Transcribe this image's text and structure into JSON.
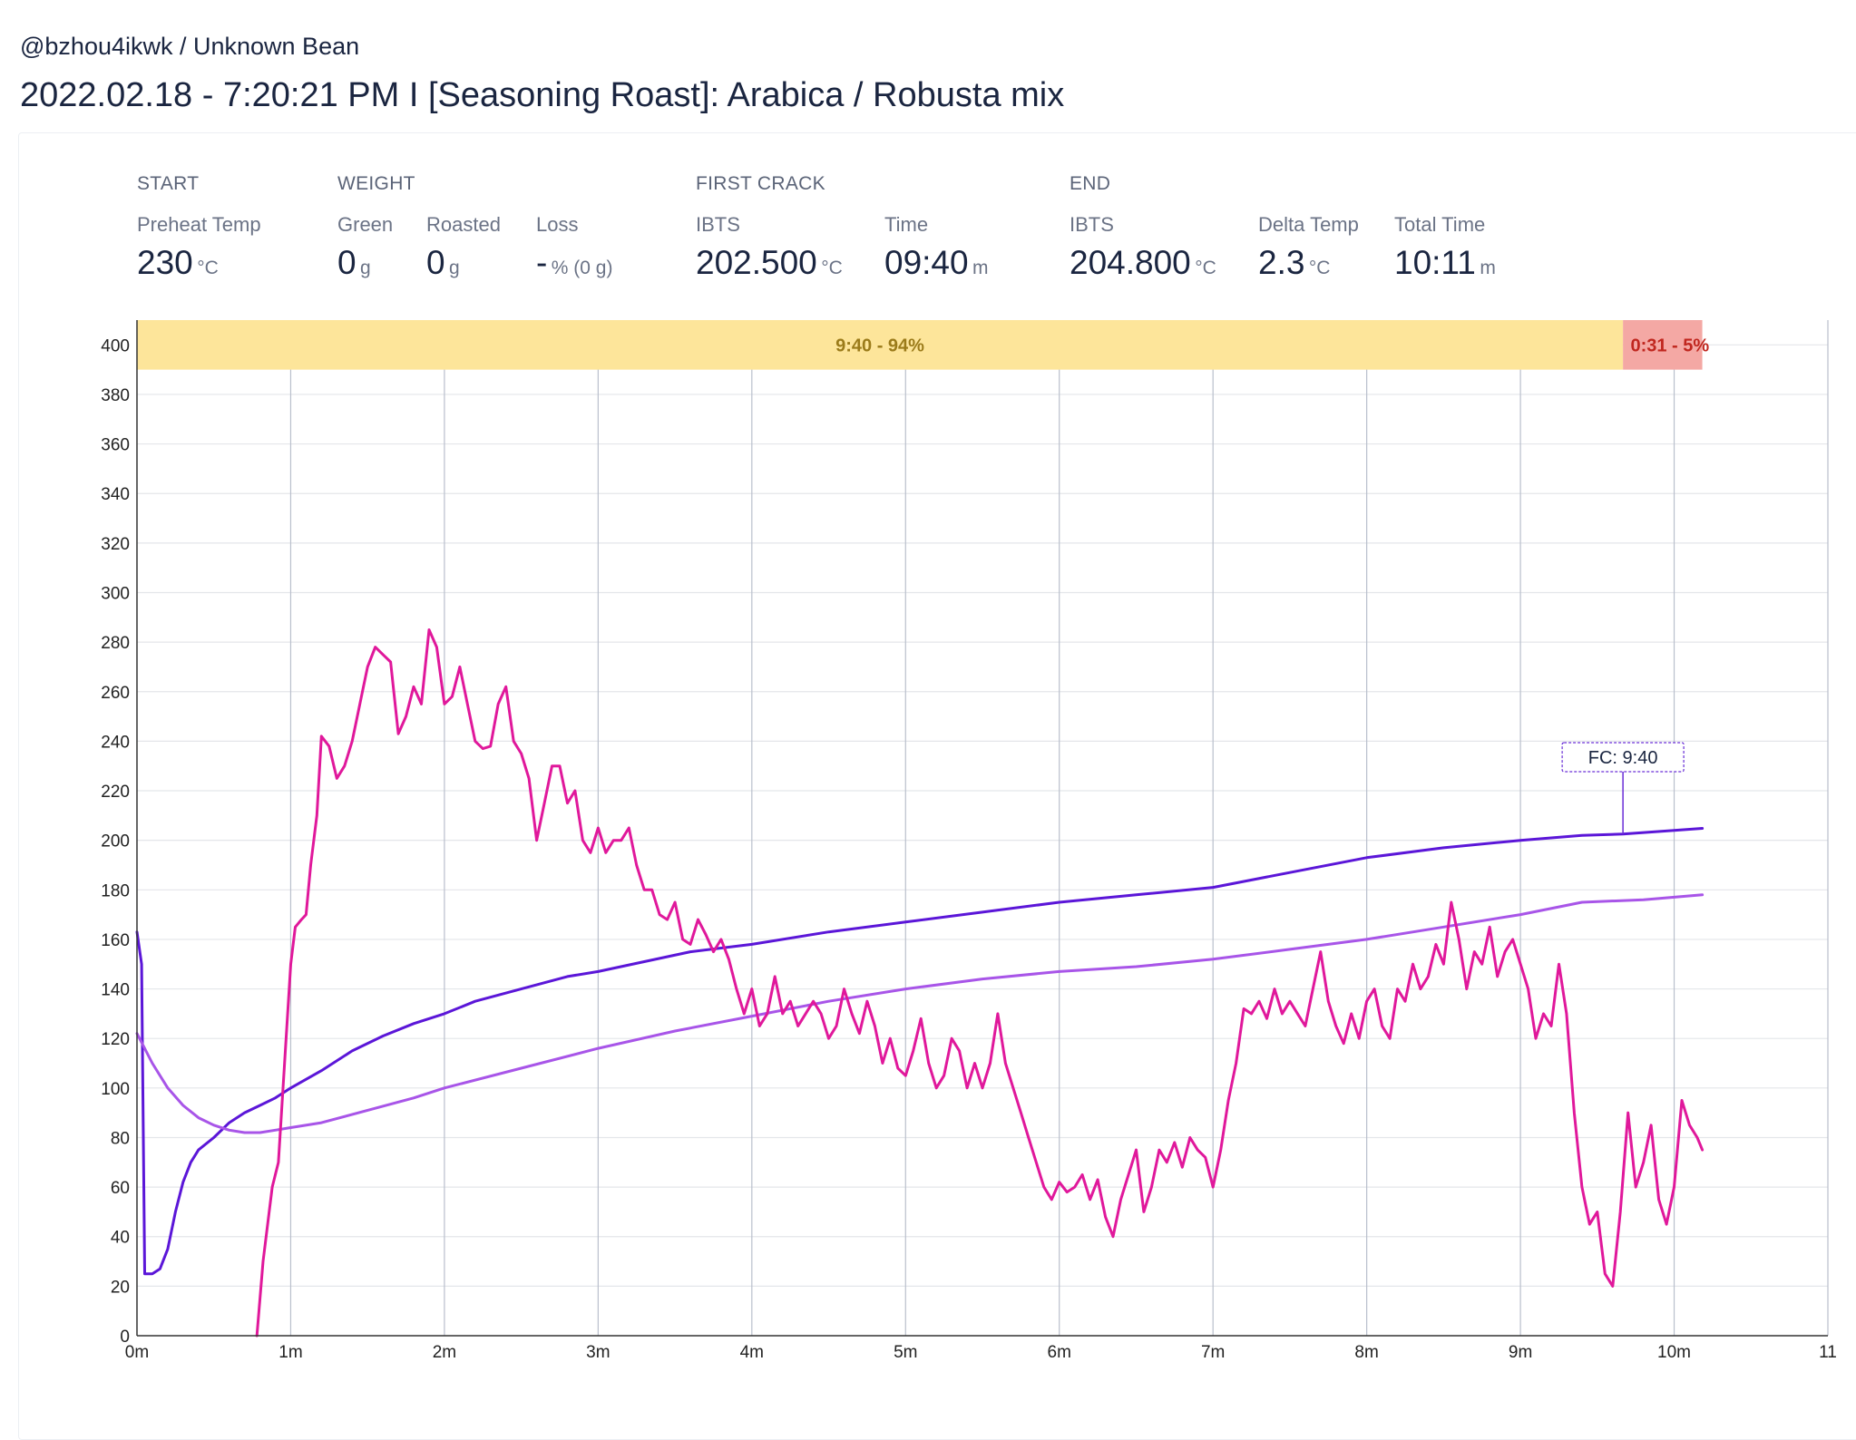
{
  "header": {
    "breadcrumb": "@bzhou4ikwk / Unknown Bean",
    "title": "2022.02.18 - 7:20:21 PM I [Seasoning Roast]: Arabica / Robusta mix"
  },
  "stats": {
    "start": {
      "heading": "START",
      "preheat_label": "Preheat Temp",
      "preheat_value": "230",
      "preheat_unit": "°C"
    },
    "weight": {
      "heading": "WEIGHT",
      "green_label": "Green",
      "green_value": "0",
      "green_unit": "g",
      "roasted_label": "Roasted",
      "roasted_value": "0",
      "roasted_unit": "g",
      "loss_label": "Loss",
      "loss_value": "-",
      "loss_unit": "% (0 g)"
    },
    "first_crack": {
      "heading": "FIRST CRACK",
      "ibts_label": "IBTS",
      "ibts_value": "202.500",
      "ibts_unit": "°C",
      "time_label": "Time",
      "time_value": "09:40",
      "time_unit": "m"
    },
    "end": {
      "heading": "END",
      "ibts_label": "IBTS",
      "ibts_value": "204.800",
      "ibts_unit": "°C",
      "delta_label": "Delta Temp",
      "delta_value": "2.3",
      "delta_unit": "°C",
      "total_label": "Total Time",
      "total_value": "10:11",
      "total_unit": "m"
    }
  },
  "chart_data": {
    "type": "line",
    "xlim": [
      0,
      11
    ],
    "ylim": [
      0,
      410
    ],
    "x_ticks": [
      0,
      1,
      2,
      3,
      4,
      5,
      6,
      7,
      8,
      9,
      10,
      11
    ],
    "x_tick_labels": [
      "0m",
      "1m",
      "2m",
      "3m",
      "4m",
      "5m",
      "6m",
      "7m",
      "8m",
      "9m",
      "10m",
      "11"
    ],
    "y_ticks": [
      0,
      20,
      40,
      60,
      80,
      100,
      120,
      140,
      160,
      180,
      200,
      220,
      240,
      260,
      280,
      300,
      320,
      340,
      360,
      380,
      400
    ],
    "grid": true,
    "phases": [
      {
        "label": "9:40 - 94%",
        "start": 0,
        "end": 9.667,
        "color": "#fde59a",
        "text_color": "#9b7b1a"
      },
      {
        "label": "0:31 - 5%",
        "start": 9.667,
        "end": 10.183,
        "color": "#f4a8a4",
        "text_color": "#c0271f"
      }
    ],
    "annotation": {
      "label": "FC: 9:40",
      "x": 9.667,
      "y": 202.5
    },
    "series": [
      {
        "color": "#5b16d8",
        "points": [
          [
            0,
            163
          ],
          [
            0.03,
            150
          ],
          [
            0.05,
            25
          ],
          [
            0.1,
            25
          ],
          [
            0.15,
            27
          ],
          [
            0.2,
            35
          ],
          [
            0.25,
            50
          ],
          [
            0.3,
            62
          ],
          [
            0.35,
            70
          ],
          [
            0.4,
            75
          ],
          [
            0.5,
            80
          ],
          [
            0.6,
            86
          ],
          [
            0.7,
            90
          ],
          [
            0.8,
            93
          ],
          [
            0.9,
            96
          ],
          [
            1.0,
            100
          ],
          [
            1.2,
            107
          ],
          [
            1.4,
            115
          ],
          [
            1.6,
            121
          ],
          [
            1.8,
            126
          ],
          [
            2.0,
            130
          ],
          [
            2.2,
            135
          ],
          [
            2.5,
            140
          ],
          [
            2.8,
            145
          ],
          [
            3.0,
            147
          ],
          [
            3.3,
            151
          ],
          [
            3.6,
            155
          ],
          [
            4.0,
            158
          ],
          [
            4.5,
            163
          ],
          [
            5.0,
            167
          ],
          [
            5.5,
            171
          ],
          [
            6.0,
            175
          ],
          [
            6.5,
            178
          ],
          [
            7.0,
            181
          ],
          [
            7.5,
            187
          ],
          [
            8.0,
            193
          ],
          [
            8.5,
            197
          ],
          [
            9.0,
            200
          ],
          [
            9.4,
            202
          ],
          [
            9.667,
            202.5
          ],
          [
            10.0,
            204
          ],
          [
            10.183,
            204.8
          ]
        ]
      },
      {
        "color": "#a855e8",
        "points": [
          [
            0,
            122
          ],
          [
            0.1,
            110
          ],
          [
            0.2,
            100
          ],
          [
            0.3,
            93
          ],
          [
            0.4,
            88
          ],
          [
            0.5,
            85
          ],
          [
            0.6,
            83
          ],
          [
            0.7,
            82
          ],
          [
            0.8,
            82
          ],
          [
            0.9,
            83
          ],
          [
            1.0,
            84
          ],
          [
            1.2,
            86
          ],
          [
            1.5,
            91
          ],
          [
            1.8,
            96
          ],
          [
            2.0,
            100
          ],
          [
            2.5,
            108
          ],
          [
            3.0,
            116
          ],
          [
            3.5,
            123
          ],
          [
            4.0,
            129
          ],
          [
            4.5,
            135
          ],
          [
            5.0,
            140
          ],
          [
            5.5,
            144
          ],
          [
            6.0,
            147
          ],
          [
            6.5,
            149
          ],
          [
            7.0,
            152
          ],
          [
            7.5,
            156
          ],
          [
            8.0,
            160
          ],
          [
            8.5,
            165
          ],
          [
            9.0,
            170
          ],
          [
            9.4,
            175
          ],
          [
            9.8,
            176
          ],
          [
            10.183,
            178
          ]
        ]
      },
      {
        "color": "#e0189b",
        "points": [
          [
            0.78,
            0
          ],
          [
            0.82,
            30
          ],
          [
            0.88,
            60
          ],
          [
            0.92,
            70
          ],
          [
            0.96,
            110
          ],
          [
            1.0,
            150
          ],
          [
            1.03,
            165
          ],
          [
            1.07,
            168
          ],
          [
            1.1,
            170
          ],
          [
            1.13,
            190
          ],
          [
            1.17,
            210
          ],
          [
            1.2,
            242
          ],
          [
            1.25,
            238
          ],
          [
            1.3,
            225
          ],
          [
            1.35,
            230
          ],
          [
            1.4,
            240
          ],
          [
            1.45,
            255
          ],
          [
            1.5,
            270
          ],
          [
            1.55,
            278
          ],
          [
            1.6,
            275
          ],
          [
            1.65,
            272
          ],
          [
            1.7,
            243
          ],
          [
            1.75,
            250
          ],
          [
            1.8,
            262
          ],
          [
            1.85,
            255
          ],
          [
            1.9,
            285
          ],
          [
            1.95,
            278
          ],
          [
            2.0,
            255
          ],
          [
            2.05,
            258
          ],
          [
            2.1,
            270
          ],
          [
            2.15,
            255
          ],
          [
            2.2,
            240
          ],
          [
            2.25,
            237
          ],
          [
            2.3,
            238
          ],
          [
            2.35,
            255
          ],
          [
            2.4,
            262
          ],
          [
            2.45,
            240
          ],
          [
            2.5,
            235
          ],
          [
            2.55,
            225
          ],
          [
            2.6,
            200
          ],
          [
            2.65,
            215
          ],
          [
            2.7,
            230
          ],
          [
            2.75,
            230
          ],
          [
            2.8,
            215
          ],
          [
            2.85,
            220
          ],
          [
            2.9,
            200
          ],
          [
            2.95,
            195
          ],
          [
            3.0,
            205
          ],
          [
            3.05,
            195
          ],
          [
            3.1,
            200
          ],
          [
            3.15,
            200
          ],
          [
            3.2,
            205
          ],
          [
            3.25,
            190
          ],
          [
            3.3,
            180
          ],
          [
            3.35,
            180
          ],
          [
            3.4,
            170
          ],
          [
            3.45,
            168
          ],
          [
            3.5,
            175
          ],
          [
            3.55,
            160
          ],
          [
            3.6,
            158
          ],
          [
            3.65,
            168
          ],
          [
            3.7,
            162
          ],
          [
            3.75,
            155
          ],
          [
            3.8,
            160
          ],
          [
            3.85,
            152
          ],
          [
            3.9,
            140
          ],
          [
            3.95,
            130
          ],
          [
            4.0,
            140
          ],
          [
            4.05,
            125
          ],
          [
            4.1,
            130
          ],
          [
            4.15,
            145
          ],
          [
            4.2,
            130
          ],
          [
            4.25,
            135
          ],
          [
            4.3,
            125
          ],
          [
            4.35,
            130
          ],
          [
            4.4,
            135
          ],
          [
            4.45,
            130
          ],
          [
            4.5,
            120
          ],
          [
            4.55,
            125
          ],
          [
            4.6,
            140
          ],
          [
            4.65,
            130
          ],
          [
            4.7,
            122
          ],
          [
            4.75,
            135
          ],
          [
            4.8,
            125
          ],
          [
            4.85,
            110
          ],
          [
            4.9,
            120
          ],
          [
            4.95,
            108
          ],
          [
            5.0,
            105
          ],
          [
            5.05,
            115
          ],
          [
            5.1,
            128
          ],
          [
            5.15,
            110
          ],
          [
            5.2,
            100
          ],
          [
            5.25,
            105
          ],
          [
            5.3,
            120
          ],
          [
            5.35,
            115
          ],
          [
            5.4,
            100
          ],
          [
            5.45,
            110
          ],
          [
            5.5,
            100
          ],
          [
            5.55,
            110
          ],
          [
            5.6,
            130
          ],
          [
            5.65,
            110
          ],
          [
            5.7,
            100
          ],
          [
            5.75,
            90
          ],
          [
            5.8,
            80
          ],
          [
            5.85,
            70
          ],
          [
            5.9,
            60
          ],
          [
            5.95,
            55
          ],
          [
            6.0,
            62
          ],
          [
            6.05,
            58
          ],
          [
            6.1,
            60
          ],
          [
            6.15,
            65
          ],
          [
            6.2,
            55
          ],
          [
            6.25,
            63
          ],
          [
            6.3,
            48
          ],
          [
            6.35,
            40
          ],
          [
            6.4,
            55
          ],
          [
            6.45,
            65
          ],
          [
            6.5,
            75
          ],
          [
            6.55,
            50
          ],
          [
            6.6,
            60
          ],
          [
            6.65,
            75
          ],
          [
            6.7,
            70
          ],
          [
            6.75,
            78
          ],
          [
            6.8,
            68
          ],
          [
            6.85,
            80
          ],
          [
            6.9,
            75
          ],
          [
            6.95,
            72
          ],
          [
            7.0,
            60
          ],
          [
            7.05,
            75
          ],
          [
            7.1,
            95
          ],
          [
            7.15,
            110
          ],
          [
            7.2,
            132
          ],
          [
            7.25,
            130
          ],
          [
            7.3,
            135
          ],
          [
            7.35,
            128
          ],
          [
            7.4,
            140
          ],
          [
            7.45,
            130
          ],
          [
            7.5,
            135
          ],
          [
            7.55,
            130
          ],
          [
            7.6,
            125
          ],
          [
            7.65,
            140
          ],
          [
            7.7,
            155
          ],
          [
            7.75,
            135
          ],
          [
            7.8,
            125
          ],
          [
            7.85,
            118
          ],
          [
            7.9,
            130
          ],
          [
            7.95,
            120
          ],
          [
            8.0,
            135
          ],
          [
            8.05,
            140
          ],
          [
            8.1,
            125
          ],
          [
            8.15,
            120
          ],
          [
            8.2,
            140
          ],
          [
            8.25,
            135
          ],
          [
            8.3,
            150
          ],
          [
            8.35,
            140
          ],
          [
            8.4,
            145
          ],
          [
            8.45,
            158
          ],
          [
            8.5,
            150
          ],
          [
            8.55,
            175
          ],
          [
            8.6,
            160
          ],
          [
            8.65,
            140
          ],
          [
            8.7,
            155
          ],
          [
            8.75,
            150
          ],
          [
            8.8,
            165
          ],
          [
            8.85,
            145
          ],
          [
            8.9,
            155
          ],
          [
            8.95,
            160
          ],
          [
            9.0,
            150
          ],
          [
            9.05,
            140
          ],
          [
            9.1,
            120
          ],
          [
            9.15,
            130
          ],
          [
            9.2,
            125
          ],
          [
            9.25,
            150
          ],
          [
            9.3,
            130
          ],
          [
            9.35,
            90
          ],
          [
            9.4,
            60
          ],
          [
            9.45,
            45
          ],
          [
            9.5,
            50
          ],
          [
            9.55,
            25
          ],
          [
            9.6,
            20
          ],
          [
            9.65,
            50
          ],
          [
            9.7,
            90
          ],
          [
            9.75,
            60
          ],
          [
            9.8,
            70
          ],
          [
            9.85,
            85
          ],
          [
            9.9,
            55
          ],
          [
            9.95,
            45
          ],
          [
            10.0,
            60
          ],
          [
            10.05,
            95
          ],
          [
            10.1,
            85
          ],
          [
            10.15,
            80
          ],
          [
            10.183,
            75
          ]
        ]
      }
    ]
  }
}
